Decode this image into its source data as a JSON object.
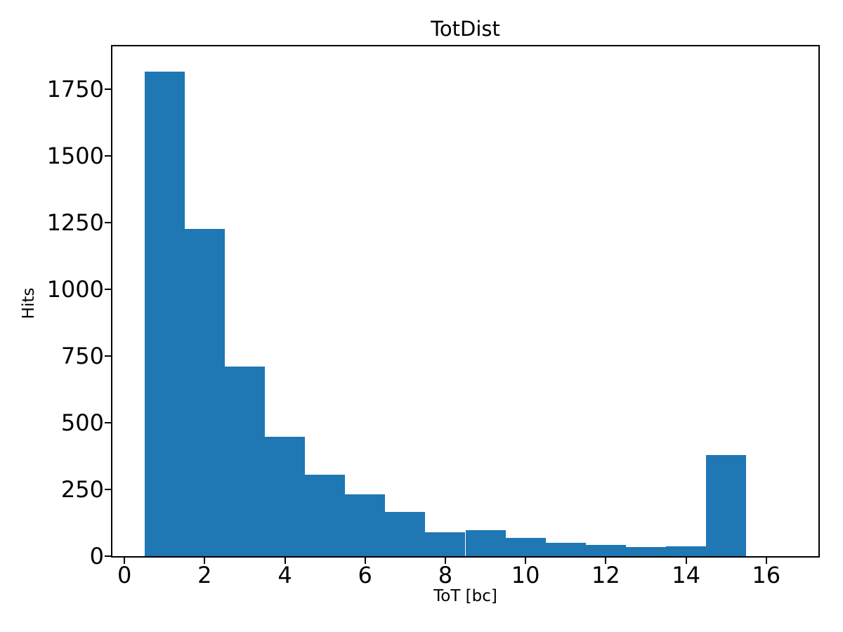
{
  "chart_data": {
    "type": "bar",
    "subtype": "histogram",
    "title": "TotDist",
    "xlabel": "ToT [bc]",
    "ylabel": "Hits",
    "bin_start": 0.5,
    "bin_width": 1,
    "bin_edges": [
      0.5,
      1.5,
      2.5,
      3.5,
      4.5,
      5.5,
      6.5,
      7.5,
      8.5,
      9.5,
      10.5,
      11.5,
      12.5,
      13.5,
      14.5,
      15.5
    ],
    "values": [
      1815,
      1225,
      710,
      447,
      305,
      232,
      166,
      90,
      98,
      68,
      50,
      42,
      34,
      38,
      380
    ],
    "xlim": [
      -0.3,
      17.3
    ],
    "ylim": [
      0,
      1910
    ],
    "xticks": [
      0,
      2,
      4,
      6,
      8,
      10,
      12,
      14,
      16
    ],
    "yticks": [
      0,
      250,
      500,
      750,
      1000,
      1250,
      1500,
      1750
    ],
    "bar_color": "#1f77b4",
    "axis_color": "#000000",
    "background_color": "#ffffff",
    "grid": false,
    "legend": "none"
  }
}
